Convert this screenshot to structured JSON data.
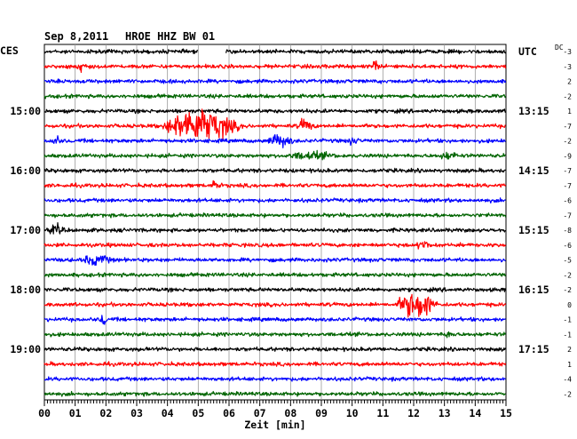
{
  "header": {
    "date": "Sep 8,2011",
    "station": "HROE HHZ BW 01",
    "left_zone": "CES",
    "right_zone": "UTC",
    "dc_label": "DC"
  },
  "chart_data": {
    "type": "line",
    "title": "Sep 8,2011   HROE HHZ BW 01",
    "xlabel": "Zeit [min]",
    "xlim": [
      0,
      15
    ],
    "x_ticks": [
      "00",
      "01",
      "02",
      "03",
      "04",
      "05",
      "06",
      "07",
      "08",
      "09",
      "10",
      "11",
      "12",
      "13",
      "14",
      "15"
    ],
    "trace_colors": [
      "#000000",
      "#ff0000",
      "#0000ff",
      "#006400"
    ],
    "traces_per_hour": 4,
    "left_hour_labels": [
      {
        "trace": 4,
        "label": "15:00"
      },
      {
        "trace": 8,
        "label": "16:00"
      },
      {
        "trace": 12,
        "label": "17:00"
      },
      {
        "trace": 16,
        "label": "18:00"
      },
      {
        "trace": 20,
        "label": "19:00"
      }
    ],
    "right_hour_labels": [
      {
        "trace": 0,
        "label": "UTC"
      },
      {
        "trace": 4,
        "label": "13:15"
      },
      {
        "trace": 8,
        "label": "14:15"
      },
      {
        "trace": 12,
        "label": "15:15"
      },
      {
        "trace": 16,
        "label": "16:15"
      },
      {
        "trace": 20,
        "label": "17:15"
      }
    ],
    "dc_offsets": [
      "-3",
      "-3",
      "2",
      "-2",
      "1",
      "-7",
      "-2",
      "-9",
      "-7",
      "-7",
      "-6",
      "-7",
      "-8",
      "-6",
      "-5",
      "-2",
      "-2",
      "0",
      "-1",
      "-1",
      "2",
      "1",
      "-4",
      "-2"
    ],
    "gaps": [
      {
        "trace": 0,
        "start": 5.0,
        "end": 5.9
      }
    ],
    "events": [
      {
        "trace": 1,
        "start": 1.0,
        "duration": 0.7,
        "amplitude": 3
      },
      {
        "trace": 1,
        "start": 10.6,
        "duration": 0.6,
        "amplitude": 3
      },
      {
        "trace": 5,
        "start": 3.8,
        "duration": 4.5,
        "amplitude": 12
      },
      {
        "trace": 5,
        "start": 8.2,
        "duration": 1.0,
        "amplitude": 4
      },
      {
        "trace": 6,
        "start": 0.2,
        "duration": 0.6,
        "amplitude": 3
      },
      {
        "trace": 6,
        "start": 7.2,
        "duration": 1.6,
        "amplitude": 4
      },
      {
        "trace": 6,
        "start": 9.8,
        "duration": 0.8,
        "amplitude": 2
      },
      {
        "trace": 7,
        "start": 7.8,
        "duration": 3.0,
        "amplitude": 2
      },
      {
        "trace": 7,
        "start": 12.8,
        "duration": 1.2,
        "amplitude": 2
      },
      {
        "trace": 9,
        "start": 5.4,
        "duration": 0.6,
        "amplitude": 3
      },
      {
        "trace": 12,
        "start": 0.1,
        "duration": 1.0,
        "amplitude": 3
      },
      {
        "trace": 13,
        "start": 12.1,
        "duration": 0.8,
        "amplitude": 3
      },
      {
        "trace": 14,
        "start": 1.2,
        "duration": 1.8,
        "amplitude": 3
      },
      {
        "trace": 17,
        "start": 11.4,
        "duration": 2.4,
        "amplitude": 9
      },
      {
        "trace": 17,
        "start": 12.3,
        "duration": 0.4,
        "amplitude": 15
      },
      {
        "trace": 18,
        "start": 1.8,
        "duration": 0.4,
        "amplitude": 5
      },
      {
        "trace": 19,
        "start": 13.0,
        "duration": 0.6,
        "amplitude": 2
      }
    ]
  }
}
